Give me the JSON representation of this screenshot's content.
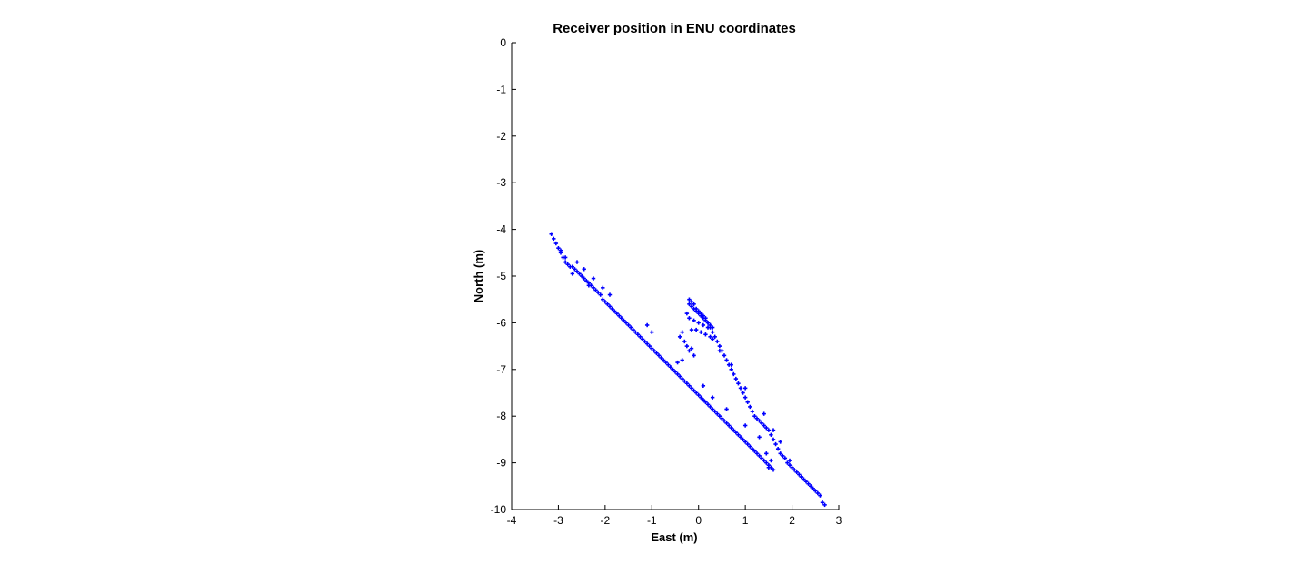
{
  "chart_data": {
    "type": "scatter",
    "title": "Receiver position in ENU coordinates",
    "xlabel": "East (m)",
    "ylabel": "North (m)",
    "xlim": [
      -4,
      3
    ],
    "ylim": [
      -10,
      0
    ],
    "xticks": [
      -4,
      -3,
      -2,
      -1,
      0,
      1,
      2,
      3
    ],
    "yticks": [
      0,
      -1,
      -2,
      -3,
      -4,
      -5,
      -6,
      -7,
      -8,
      -9,
      -10
    ],
    "xtick_labels": [
      "-4",
      "-3",
      "-2",
      "-1",
      "0",
      "1",
      "2",
      "3"
    ],
    "ytick_labels": [
      "0",
      "-1",
      "-2",
      "-3",
      "-4",
      "-5",
      "-6",
      "-7",
      "-8",
      "-9",
      "-10"
    ],
    "grid": false,
    "marker": "+",
    "color": "#0000ff",
    "series": [
      {
        "x": [
          -3.15,
          -3.1,
          -3.05,
          -3.0,
          -2.95,
          -2.9,
          -2.85,
          -2.8,
          -2.75,
          -2.7,
          -2.65,
          -2.6,
          -2.55,
          -2.5,
          -2.45,
          -2.4,
          -2.35,
          -2.3,
          -2.25,
          -2.2,
          -2.15,
          -2.1,
          -2.05,
          -2.0,
          -1.95,
          -1.9,
          -1.85,
          -1.8,
          -1.75,
          -1.7,
          -1.65,
          -1.6,
          -1.55,
          -1.5,
          -1.45,
          -1.4,
          -1.35,
          -1.3,
          -1.25,
          -1.2,
          -1.15,
          -1.1,
          -1.05,
          -1.0,
          -0.95,
          -0.9,
          -0.85,
          -0.8,
          -0.75,
          -0.7,
          -0.65,
          -0.6,
          -0.55,
          -0.5,
          -0.45,
          -0.4,
          -0.35,
          -0.3,
          -0.25,
          -0.2,
          -0.15,
          -0.1,
          -0.05,
          0.0,
          0.05,
          0.1,
          0.15,
          0.2,
          0.25,
          0.3,
          0.35,
          0.4,
          0.45,
          0.5,
          0.55,
          0.6,
          0.65,
          0.7,
          0.75,
          0.8,
          0.85,
          0.9,
          0.95,
          1.0,
          1.05,
          1.1,
          1.15,
          1.2,
          1.25,
          1.3,
          1.35,
          1.4,
          1.45,
          1.5,
          1.55,
          1.6,
          -2.95,
          -2.85,
          -2.7,
          -2.6,
          -2.45,
          -2.35,
          -2.25,
          -2.05,
          -1.9,
          -0.4,
          -0.35,
          -0.3,
          -0.25,
          -0.2,
          -0.15,
          -0.1,
          -0.35,
          -0.45,
          -1.1,
          -1.0,
          0.1,
          0.3,
          0.6,
          1.0,
          1.3,
          1.45,
          1.55,
          1.5
        ],
        "y": [
          -4.1,
          -4.2,
          -4.3,
          -4.4,
          -4.5,
          -4.6,
          -4.7,
          -4.75,
          -4.8,
          -4.8,
          -4.85,
          -4.9,
          -4.95,
          -5.0,
          -5.05,
          -5.1,
          -5.15,
          -5.2,
          -5.25,
          -5.3,
          -5.35,
          -5.4,
          -5.5,
          -5.55,
          -5.6,
          -5.65,
          -5.7,
          -5.75,
          -5.8,
          -5.85,
          -5.9,
          -5.95,
          -6.0,
          -6.05,
          -6.1,
          -6.15,
          -6.2,
          -6.25,
          -6.3,
          -6.35,
          -6.4,
          -6.45,
          -6.5,
          -6.55,
          -6.6,
          -6.65,
          -6.7,
          -6.75,
          -6.8,
          -6.85,
          -6.9,
          -6.95,
          -7.0,
          -7.05,
          -7.1,
          -7.15,
          -7.2,
          -7.25,
          -7.3,
          -7.35,
          -7.4,
          -7.45,
          -7.5,
          -7.55,
          -7.6,
          -7.65,
          -7.7,
          -7.75,
          -7.8,
          -7.85,
          -7.9,
          -7.95,
          -8.0,
          -8.05,
          -8.1,
          -8.15,
          -8.2,
          -8.25,
          -8.3,
          -8.35,
          -8.4,
          -8.45,
          -8.5,
          -8.55,
          -8.6,
          -8.65,
          -8.7,
          -8.75,
          -8.8,
          -8.85,
          -8.9,
          -8.95,
          -9.0,
          -9.05,
          -9.1,
          -9.15,
          -4.45,
          -4.6,
          -4.95,
          -4.7,
          -4.85,
          -5.2,
          -5.05,
          -5.25,
          -5.4,
          -6.3,
          -6.2,
          -6.4,
          -6.5,
          -6.6,
          -6.55,
          -6.7,
          -6.8,
          -6.85,
          -6.05,
          -6.2,
          -7.35,
          -7.6,
          -7.85,
          -8.2,
          -8.45,
          -8.8,
          -8.95,
          -9.1
        ]
      },
      {
        "x": [
          -0.2,
          -0.15,
          -0.1,
          -0.05,
          0.0,
          0.05,
          0.1,
          0.15,
          0.2,
          0.25,
          0.3,
          0.35,
          0.4,
          0.45,
          0.5,
          0.55,
          0.6,
          0.65,
          0.7,
          0.75,
          0.8,
          0.85,
          0.9,
          0.95,
          1.0,
          1.05,
          1.1,
          1.15,
          1.2,
          1.25,
          1.3,
          1.35,
          1.4,
          1.45,
          1.5,
          1.55,
          1.6,
          1.65,
          1.7,
          1.75,
          1.8,
          1.85,
          1.9,
          1.95,
          2.0,
          2.05,
          2.1,
          2.15,
          2.2,
          2.25,
          2.3,
          2.35,
          2.4,
          2.45,
          2.5,
          2.55,
          2.6,
          2.65,
          2.7,
          -0.2,
          -0.15,
          -0.1,
          -0.05,
          0.0,
          0.05,
          0.1,
          0.15,
          0.2,
          0.25,
          0.3,
          -0.25,
          -0.2,
          -0.1,
          0.0,
          0.1,
          0.2,
          -0.15,
          -0.05,
          0.05,
          0.15,
          0.25,
          0.3,
          0.45,
          0.7,
          1.0,
          1.4,
          1.6,
          1.75,
          1.95,
          2.2
        ],
        "y": [
          -5.5,
          -5.55,
          -5.6,
          -5.7,
          -5.75,
          -5.8,
          -5.85,
          -5.9,
          -6.0,
          -6.1,
          -6.2,
          -6.3,
          -6.4,
          -6.5,
          -6.6,
          -6.7,
          -6.8,
          -6.9,
          -7.0,
          -7.1,
          -7.2,
          -7.3,
          -7.4,
          -7.5,
          -7.6,
          -7.7,
          -7.8,
          -7.9,
          -8.0,
          -8.05,
          -8.1,
          -8.15,
          -8.2,
          -8.25,
          -8.3,
          -8.4,
          -8.5,
          -8.6,
          -8.7,
          -8.8,
          -8.85,
          -8.9,
          -9.0,
          -9.05,
          -9.1,
          -9.15,
          -9.2,
          -9.25,
          -9.3,
          -9.35,
          -9.4,
          -9.45,
          -9.5,
          -9.55,
          -9.6,
          -9.65,
          -9.7,
          -9.85,
          -9.9,
          -5.6,
          -5.65,
          -5.7,
          -5.75,
          -5.8,
          -5.85,
          -5.9,
          -5.95,
          -6.0,
          -6.05,
          -6.1,
          -5.8,
          -5.9,
          -5.95,
          -6.0,
          -6.05,
          -6.1,
          -6.15,
          -6.15,
          -6.2,
          -6.25,
          -6.3,
          -6.35,
          -6.6,
          -6.9,
          -7.4,
          -7.95,
          -8.3,
          -8.55,
          -8.95,
          -9.3
        ]
      }
    ]
  }
}
